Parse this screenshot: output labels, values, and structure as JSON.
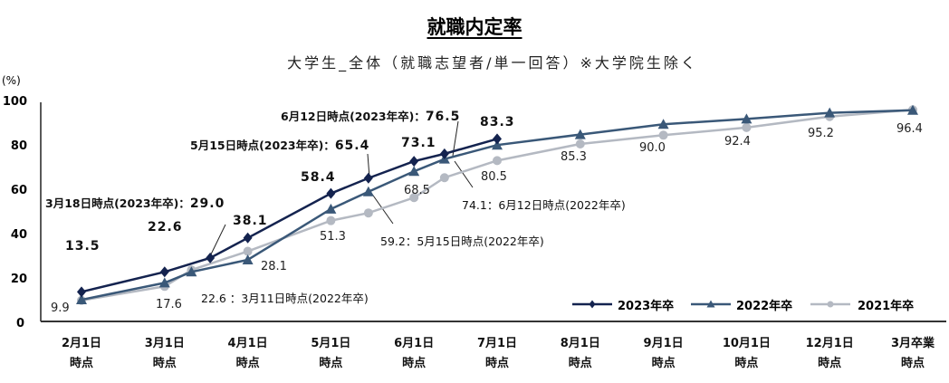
{
  "chart_data": {
    "type": "line",
    "title": "就職内定率",
    "subtitle": "大学生_全体（就職志望者/単一回答）※大学院生除く",
    "ylabel": "(%)",
    "ylim": [
      0,
      100
    ],
    "yticks": [
      "0",
      "20",
      "40",
      "60",
      "80",
      "100"
    ],
    "categories": [
      [
        "2月1日",
        "時点"
      ],
      [
        "3月1日",
        "時点"
      ],
      [
        "4月1日",
        "時点"
      ],
      [
        "5月1日",
        "時点"
      ],
      [
        "6月1日",
        "時点"
      ],
      [
        "7月1日",
        "時点"
      ],
      [
        "8月1日",
        "時点"
      ],
      [
        "9月1日",
        "時点"
      ],
      [
        "10月1日",
        "時点"
      ],
      [
        "12月1日",
        "時点"
      ],
      [
        "3月卒業",
        "時点"
      ]
    ],
    "grid": false,
    "legend_position": "bottom-right",
    "series": [
      {
        "name": "2023年卒",
        "color": "#14234f",
        "marker": "diamond",
        "points": [
          [
            "2月1日",
            13.5
          ],
          [
            "3月1日",
            22.6
          ],
          [
            "3月18日",
            29.0
          ],
          [
            "4月1日",
            38.1
          ],
          [
            "5月1日",
            58.4
          ],
          [
            "5月15日",
            65.4
          ],
          [
            "6月1日",
            73.1
          ],
          [
            "6月12日",
            76.5
          ],
          [
            "7月1日",
            83.3
          ]
        ]
      },
      {
        "name": "2022年卒",
        "color": "#3a5878",
        "marker": "triangle",
        "points": [
          [
            "2月1日",
            9.9
          ],
          [
            "3月1日",
            17.6
          ],
          [
            "3月11日",
            22.6
          ],
          [
            "4月1日",
            28.1
          ],
          [
            "5月1日",
            51.3
          ],
          [
            "5月15日",
            59.2
          ],
          [
            "6月1日",
            68.5
          ],
          [
            "6月12日",
            74.1
          ],
          [
            "7月1日",
            80.5
          ],
          [
            "8月1日",
            85.3
          ],
          [
            "9月1日",
            90.0
          ],
          [
            "10月1日",
            92.4
          ],
          [
            "12月1日",
            95.2
          ],
          [
            "3月卒業",
            96.4
          ]
        ]
      },
      {
        "name": "2021年卒",
        "color": "#b4b9c2",
        "marker": "circle",
        "points": [
          [
            "2月1日",
            9.6
          ],
          [
            "3月1日",
            16.0
          ],
          [
            "3月11日",
            23.5
          ],
          [
            "4月1日",
            32.0
          ],
          [
            "5月1日",
            46.0
          ],
          [
            "5月15日",
            49.5
          ],
          [
            "6月1日",
            56.5
          ],
          [
            "6月12日",
            65.6
          ],
          [
            "7月1日",
            73.4
          ],
          [
            "8月1日",
            81.0
          ],
          [
            "9月1日",
            85.0
          ],
          [
            "10月1日",
            88.5
          ],
          [
            "12月1日",
            93.5
          ],
          [
            "3月卒業",
            96.6
          ]
        ]
      }
    ],
    "data_labels": {
      "l2023_0": "13.5",
      "l2023_1": "22.6",
      "l2023_3": "38.1",
      "l2023_4": "58.4",
      "l2023_6": "73.1",
      "l2023_8": "83.3",
      "l2022_0": "9.9",
      "l2022_1": "17.6",
      "l2022_3": "28.1",
      "l2022_4": "51.3",
      "l2022_6": "68.5",
      "l2022_8": "80.5",
      "l2022_9": "85.3",
      "l2022_10": "90.0",
      "l2022_11": "92.4",
      "l2022_12": "95.2",
      "l2022_13": "96.4"
    },
    "annotations": {
      "a2023_318": "3月18日時点(2023年卒)：",
      "a2023_318_v": "29.0",
      "a2023_515": "5月15日時点(2023年卒)：",
      "a2023_515_v": "65.4",
      "a2023_612": "6月12日時点(2023年卒)：",
      "a2023_612_v": "76.5",
      "a2022_311": "22.6 ：3月11日時点(2022年卒)",
      "a2022_515": "59.2：5月15日時点(2022年卒)",
      "a2022_612": "74.1：6月12日時点(2022年卒)"
    }
  }
}
